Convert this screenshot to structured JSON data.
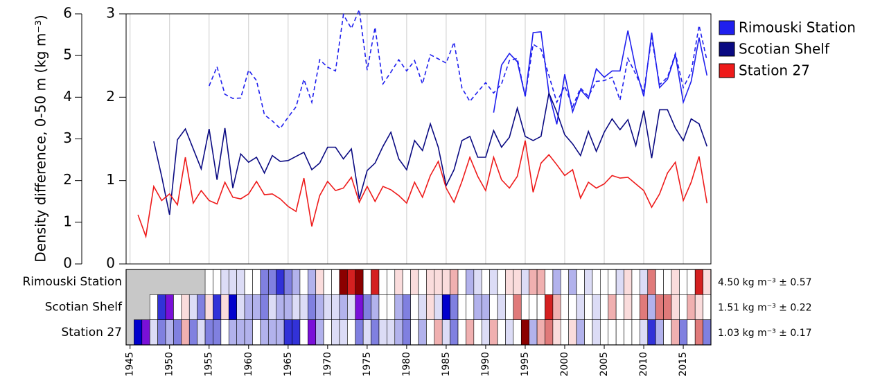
{
  "chart_data": {
    "type": "line",
    "y_label": "Density difference, 0-50 m (kg m⁻³)",
    "x": [
      1945,
      1946,
      1947,
      1948,
      1949,
      1950,
      1951,
      1952,
      1953,
      1954,
      1955,
      1956,
      1957,
      1958,
      1959,
      1960,
      1961,
      1962,
      1963,
      1964,
      1965,
      1966,
      1967,
      1968,
      1969,
      1970,
      1971,
      1972,
      1973,
      1974,
      1975,
      1976,
      1977,
      1978,
      1979,
      1980,
      1981,
      1982,
      1983,
      1984,
      1985,
      1986,
      1987,
      1988,
      1989,
      1990,
      1991,
      1992,
      1993,
      1994,
      1995,
      1996,
      1997,
      1998,
      1999,
      2000,
      2001,
      2002,
      2003,
      2004,
      2005,
      2006,
      2007,
      2008,
      2009,
      2010,
      2011,
      2012,
      2013,
      2014,
      2015,
      2016,
      2017,
      2018
    ],
    "xlim": [
      1944.5,
      2018.5
    ],
    "xticks": [
      1945,
      1950,
      1955,
      1960,
      1965,
      1970,
      1975,
      1980,
      1985,
      1990,
      1995,
      2000,
      2005,
      2010,
      2015
    ],
    "ylim": [
      0,
      6
    ],
    "yticks": [
      0,
      1,
      2,
      3,
      4,
      5,
      6
    ],
    "y2lim": [
      0,
      3
    ],
    "y2ticks": [
      0,
      1,
      2,
      3
    ],
    "grid": true,
    "series": [
      {
        "name": "Rimouski Station",
        "color": "#1f1fee",
        "values": [
          null,
          null,
          null,
          null,
          null,
          null,
          null,
          null,
          null,
          null,
          null,
          null,
          null,
          null,
          null,
          null,
          null,
          null,
          null,
          null,
          null,
          null,
          null,
          null,
          null,
          null,
          null,
          null,
          null,
          null,
          null,
          null,
          null,
          null,
          null,
          null,
          null,
          null,
          null,
          null,
          null,
          null,
          null,
          null,
          null,
          null,
          3.63,
          4.77,
          5.05,
          4.85,
          4.02,
          5.55,
          5.57,
          4.1,
          3.35,
          4.55,
          3.65,
          4.18,
          3.97,
          4.68,
          4.48,
          4.63,
          4.63,
          5.6,
          4.68,
          4.02,
          5.55,
          4.23,
          4.43,
          5.02,
          3.88,
          4.38,
          5.43,
          4.52
        ]
      },
      {
        "color": "#1f1fee",
        "dashed": true,
        "values": [
          null,
          null,
          null,
          null,
          null,
          null,
          null,
          null,
          null,
          null,
          4.27,
          4.73,
          4.07,
          3.97,
          3.98,
          4.65,
          4.4,
          3.58,
          3.43,
          3.25,
          3.52,
          3.77,
          4.43,
          3.88,
          4.9,
          4.72,
          4.63,
          5.98,
          5.65,
          6.1,
          4.65,
          5.68,
          4.32,
          4.6,
          4.9,
          4.63,
          4.88,
          4.32,
          5.02,
          4.92,
          4.82,
          5.32,
          4.22,
          3.9,
          4.13,
          4.35,
          4.1,
          4.32,
          4.88,
          4.93,
          4.02,
          5.27,
          5.15,
          4.52,
          3.88,
          4.27,
          3.77,
          4.22,
          4.02,
          4.38,
          4.4,
          4.48,
          3.93,
          4.93,
          4.55,
          4.13,
          5.43,
          4.3,
          4.48,
          5.05,
          4.23,
          4.6,
          5.72,
          4.88
        ]
      },
      {
        "name": "Scotian Shelf",
        "color": "#0a0a82",
        "axis": "y2",
        "values": [
          null,
          null,
          null,
          1.47,
          1.05,
          0.59,
          1.49,
          1.62,
          1.38,
          1.14,
          1.62,
          1.01,
          1.63,
          0.91,
          1.32,
          1.22,
          1.28,
          1.09,
          1.3,
          1.23,
          1.24,
          1.29,
          1.34,
          1.13,
          1.21,
          1.4,
          1.4,
          1.26,
          1.38,
          0.78,
          1.12,
          1.21,
          1.41,
          1.58,
          1.26,
          1.13,
          1.48,
          1.36,
          1.68,
          1.4,
          0.94,
          1.13,
          1.48,
          1.53,
          1.28,
          1.28,
          1.6,
          1.4,
          1.52,
          1.87,
          1.53,
          1.48,
          1.53,
          2.05,
          1.82,
          1.55,
          1.44,
          1.3,
          1.59,
          1.35,
          1.58,
          1.74,
          1.61,
          1.73,
          1.42,
          1.84,
          1.27,
          1.85,
          1.85,
          1.63,
          1.48,
          1.74,
          1.68,
          1.41
        ]
      },
      {
        "name": "Station 27",
        "color": "#ee1a1a",
        "axis": "y2",
        "values": [
          null,
          0.59,
          0.33,
          0.93,
          0.76,
          0.84,
          0.71,
          1.28,
          0.73,
          0.88,
          0.76,
          0.72,
          0.98,
          0.8,
          0.78,
          0.84,
          0.99,
          0.83,
          0.84,
          0.78,
          0.69,
          0.63,
          1.03,
          0.45,
          0.82,
          0.99,
          0.88,
          0.91,
          1.04,
          0.74,
          0.93,
          0.75,
          0.93,
          0.89,
          0.82,
          0.73,
          0.98,
          0.8,
          1.06,
          1.23,
          0.91,
          0.74,
          0.99,
          1.28,
          1.05,
          0.88,
          1.28,
          1.01,
          0.91,
          1.05,
          1.48,
          0.86,
          1.21,
          1.31,
          1.19,
          1.06,
          1.13,
          0.79,
          0.98,
          0.91,
          0.96,
          1.06,
          1.03,
          1.04,
          0.96,
          0.88,
          0.68,
          0.84,
          1.09,
          1.22,
          0.76,
          0.98,
          1.29,
          0.73
        ]
      }
    ],
    "scorecard": {
      "rows": [
        {
          "name": "Rimouski Station",
          "mean": 4.5,
          "sd": 0.57,
          "stat_label": "4.50 kg m⁻³ ± 0.57"
        },
        {
          "name": "Scotian Shelf",
          "mean": 1.51,
          "sd": 0.22,
          "stat_label": "1.51 kg m⁻³ ± 0.22"
        },
        {
          "name": "Station 27",
          "mean": 1.03,
          "sd": 0.17,
          "stat_label": "1.03 kg m⁻³ ± 0.17"
        }
      ]
    }
  }
}
